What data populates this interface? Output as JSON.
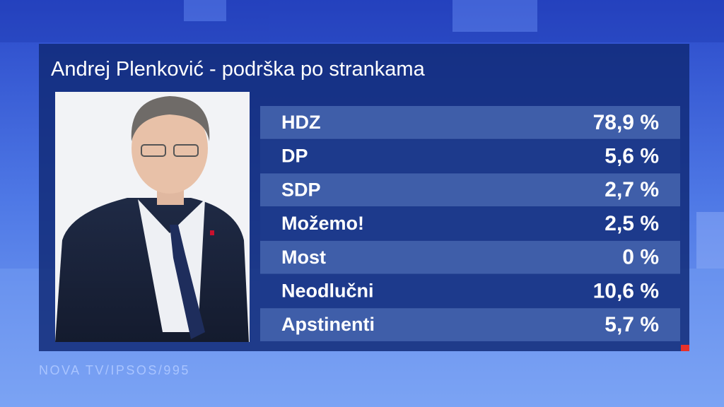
{
  "header": {
    "title": "Andrej Plenković - podrška po strankama"
  },
  "table": {
    "rows": [
      [
        "HDZ",
        "78,9 %"
      ],
      [
        "DP",
        "5,6 %"
      ],
      [
        "SDP",
        "2,7 %"
      ],
      [
        "Možemo!",
        "2,5 %"
      ],
      [
        "Most",
        "0 %"
      ],
      [
        "Neodlučni",
        "10,6 %"
      ],
      [
        "Apstinenti",
        "5,7 %"
      ]
    ]
  },
  "footer": {
    "source": "NOVA TV/IPSOS/995"
  }
}
